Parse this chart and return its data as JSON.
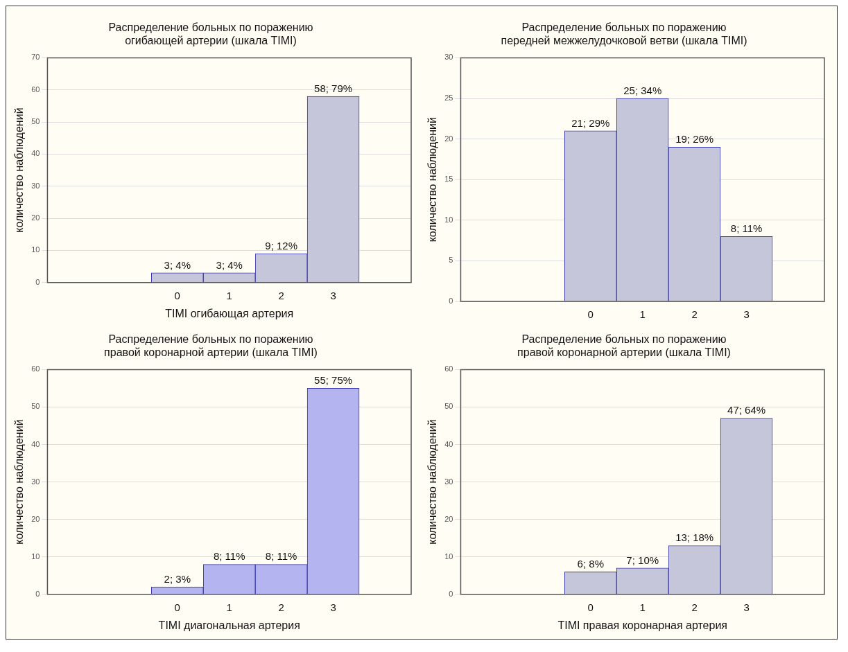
{
  "chart_data": [
    {
      "type": "bar",
      "title": "Распределение больных по поражению\nогибающей артерии (шкала TIMI)",
      "xlabel": "TIMI огибающая артерия",
      "ylabel": "количество наблюдений",
      "categories": [
        null,
        null,
        "0",
        "1",
        "2",
        "3",
        null
      ],
      "values": [
        null,
        null,
        3,
        3,
        9,
        58,
        null
      ],
      "value_labels": [
        null,
        null,
        "3; 4%",
        "3; 4%",
        "9; 12%",
        "58; 79%",
        null
      ],
      "color": "#c6c6da",
      "ylim": [
        0,
        70
      ],
      "yticks": [
        0,
        10,
        20,
        30,
        40,
        50,
        60,
        70
      ],
      "grid": "y"
    },
    {
      "type": "bar",
      "title": "Распределение больных по поражению\nпередней межжелудочковой ветви (шкала TIMI)",
      "ylabel": "количество наблюдений",
      "categories": [
        null,
        null,
        "0",
        "1",
        "2",
        "3",
        null
      ],
      "values": [
        null,
        null,
        21,
        25,
        19,
        8,
        null
      ],
      "value_labels": [
        null,
        null,
        "21; 29%",
        "25; 34%",
        "19; 26%",
        "8; 11%",
        null
      ],
      "color": "#c6c6da",
      "ylim": [
        0,
        30
      ],
      "yticks": [
        0,
        5,
        10,
        15,
        20,
        25,
        30
      ],
      "grid": "y"
    },
    {
      "type": "bar",
      "title": "Распределение больных по поражению\nправой коронарной артерии (шкала TIMI)",
      "xlabel": "TIMI диагональная артерия",
      "ylabel": "количество наблюдений",
      "categories": [
        null,
        null,
        "0",
        "1",
        "2",
        "3",
        null
      ],
      "values": [
        null,
        null,
        2,
        8,
        8,
        55,
        null
      ],
      "value_labels": [
        null,
        null,
        "2; 3%",
        "8; 11%",
        "8; 11%",
        "55; 75%",
        null
      ],
      "color": "#b4b4f0",
      "ylim": [
        0,
        60
      ],
      "yticks": [
        0,
        10,
        20,
        30,
        40,
        50,
        60
      ],
      "grid": "y"
    },
    {
      "type": "bar",
      "title": "Распределение больных по поражению\nправой коронарной артерии (шкала TIMI)",
      "xlabel": "TIMI правая коронарная артерия",
      "ylabel": "количество наблюдений",
      "categories": [
        null,
        null,
        "0",
        "1",
        "2",
        "3",
        null
      ],
      "values": [
        null,
        null,
        6,
        7,
        13,
        47,
        null
      ],
      "value_labels": [
        null,
        null,
        "6; 8%",
        "7; 10%",
        "13; 18%",
        "47; 64%",
        null
      ],
      "color": "#c6c6da",
      "ylim": [
        0,
        60
      ],
      "yticks": [
        0,
        10,
        20,
        30,
        40,
        50,
        60
      ],
      "grid": "y"
    }
  ]
}
